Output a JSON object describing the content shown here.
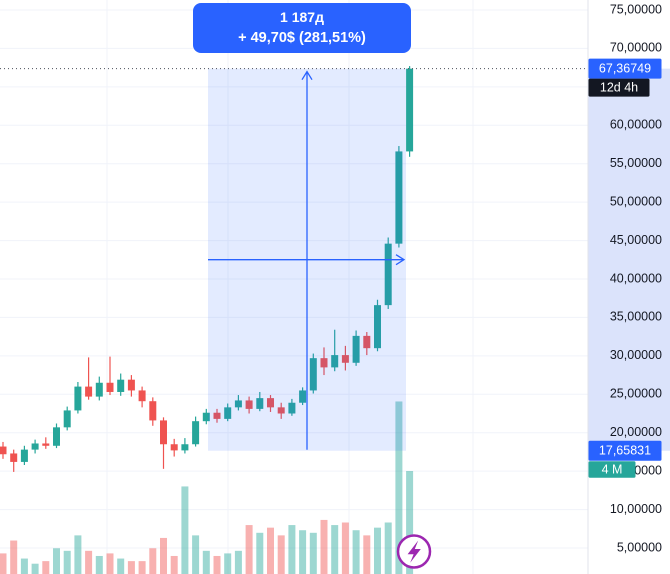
{
  "measurement_tooltip": {
    "duration": "1 187д",
    "change": "+ 49,70$ (281,51%)"
  },
  "price_scale": {
    "ticks": [
      {
        "value": 75,
        "label": "75,00000"
      },
      {
        "value": 70,
        "label": "70,00000"
      },
      {
        "value": 60,
        "label": "60,00000"
      },
      {
        "value": 55,
        "label": "55,00000"
      },
      {
        "value": 50,
        "label": "50,00000"
      },
      {
        "value": 45,
        "label": "45,00000"
      },
      {
        "value": 40,
        "label": "40,00000"
      },
      {
        "value": 35,
        "label": "35,00000"
      },
      {
        "value": 30,
        "label": "30,00000"
      },
      {
        "value": 25,
        "label": "25,00000"
      },
      {
        "value": 20,
        "label": "20,00000"
      },
      {
        "value": 15,
        "label": "15,00000"
      },
      {
        "value": 10,
        "label": "10,00000"
      },
      {
        "value": 5,
        "label": "5,00000"
      }
    ],
    "current_price_badge": "67,36749",
    "countdown_badge": "12d 4h",
    "measure_price_badge": "17,65831",
    "volume_badge": "4 M"
  },
  "chart_data": {
    "type": "candlestick",
    "legend_position": "none",
    "grid": true,
    "price_axis": {
      "visible_range": [
        3.3,
        76.3
      ],
      "tick_step": 5,
      "grid_prices": [
        5,
        10,
        15,
        20,
        25,
        30,
        35,
        40,
        45,
        50,
        55,
        60,
        65,
        70,
        75
      ]
    },
    "volume_axis": {
      "unit": "M",
      "latest_volume_label": "4 M",
      "latest_volume_m": 4.0
    },
    "current": {
      "price": 67.36749,
      "bar_time_remaining": "12d 4h"
    },
    "measurement": {
      "duration": "1 187д",
      "price_change": "+ 49,70$",
      "percent_change": "281,51%",
      "from_price": 17.65831,
      "to_price": 67.36749
    },
    "columns": [
      "open",
      "high",
      "low",
      "close",
      "volume_M"
    ],
    "candles": [
      [
        18.2,
        18.8,
        16.6,
        17.2,
        0.8
      ],
      [
        17.3,
        17.8,
        14.9,
        16.2,
        1.3
      ],
      [
        16.2,
        18.3,
        15.8,
        17.8,
        0.6
      ],
      [
        17.8,
        19.1,
        17.3,
        18.6,
        0.4
      ],
      [
        18.6,
        19.4,
        17.9,
        18.3,
        0.5
      ],
      [
        18.3,
        21.2,
        18.0,
        20.7,
        1.0
      ],
      [
        20.7,
        23.4,
        20.3,
        22.9,
        0.9
      ],
      [
        22.9,
        26.6,
        22.5,
        26.0,
        1.5
      ],
      [
        26.0,
        29.8,
        24.3,
        24.7,
        0.9
      ],
      [
        24.7,
        27.3,
        24.2,
        26.5,
        0.7
      ],
      [
        26.5,
        29.9,
        24.9,
        25.3,
        0.8
      ],
      [
        25.3,
        27.7,
        24.8,
        26.9,
        0.6
      ],
      [
        26.9,
        27.5,
        24.7,
        25.5,
        0.5
      ],
      [
        25.5,
        26.0,
        23.3,
        24.1,
        0.5
      ],
      [
        24.1,
        24.6,
        20.9,
        21.6,
        1.0
      ],
      [
        21.6,
        22.0,
        15.3,
        18.5,
        1.4
      ],
      [
        18.5,
        19.2,
        16.9,
        17.7,
        0.7
      ],
      [
        17.7,
        19.3,
        17.3,
        18.5,
        3.4
      ],
      [
        18.5,
        22.1,
        18.2,
        21.5,
        1.5
      ],
      [
        21.5,
        23.1,
        21.1,
        22.6,
        0.9
      ],
      [
        22.6,
        23.1,
        21.3,
        21.8,
        0.7
      ],
      [
        21.8,
        23.8,
        21.5,
        23.3,
        0.8
      ],
      [
        23.3,
        24.9,
        22.9,
        24.2,
        0.9
      ],
      [
        24.2,
        24.7,
        22.5,
        23.1,
        1.9
      ],
      [
        23.1,
        25.3,
        22.8,
        24.5,
        1.6
      ],
      [
        24.5,
        24.9,
        22.7,
        23.3,
        1.8
      ],
      [
        23.3,
        23.9,
        21.8,
        22.5,
        1.5
      ],
      [
        22.5,
        24.4,
        22.2,
        23.9,
        1.9
      ],
      [
        23.9,
        25.9,
        23.6,
        25.5,
        1.7
      ],
      [
        25.5,
        30.3,
        25.1,
        29.7,
        1.6
      ],
      [
        29.7,
        31.1,
        27.5,
        28.5,
        2.1
      ],
      [
        28.5,
        33.4,
        28.0,
        30.1,
        1.9
      ],
      [
        30.1,
        31.3,
        28.1,
        29.1,
        2.0
      ],
      [
        29.1,
        33.3,
        28.7,
        32.6,
        1.7
      ],
      [
        32.6,
        33.1,
        30.1,
        31.0,
        1.5
      ],
      [
        31.0,
        37.3,
        30.6,
        36.6,
        1.8
      ],
      [
        36.6,
        45.4,
        36.1,
        44.6,
        2.0
      ],
      [
        44.6,
        57.3,
        44.1,
        56.6,
        6.7
      ],
      [
        56.6,
        67.7,
        55.9,
        67.36749,
        4.0
      ]
    ]
  },
  "marker": {
    "icon": "lightning-icon"
  },
  "colors": {
    "up": "#26a69a",
    "down": "#ef5350",
    "up_volume": "rgba(38,166,154,0.45)",
    "down_volume": "rgba(239,83,80,0.45)",
    "accent": "#2962ff",
    "selection_fill": "rgba(41,98,255,0.13)",
    "axis_highlight": "#dbe3fb",
    "grid": "#f0f3fa",
    "text": "#131722",
    "badge_text": "#ffffff",
    "countdown_bg": "#131722",
    "volume_badge_bg": "#26a69a",
    "marker": "#9c27b0",
    "dotted_line": "#4a4e59",
    "axis_border": "#e0e3eb"
  }
}
